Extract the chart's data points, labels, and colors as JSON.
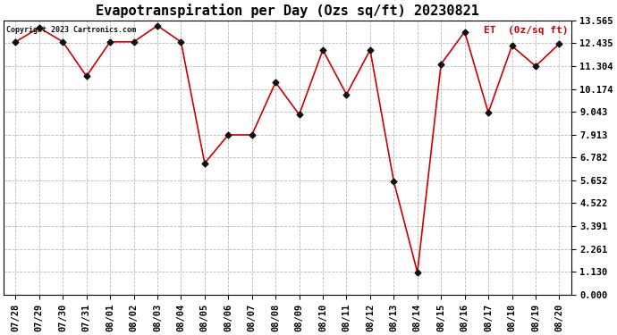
{
  "title": "Evapotranspiration per Day (Ozs sq/ft) 20230821",
  "legend_label": "ET  (0z/sq ft)",
  "copyright_text": "Copyright 2023 Cartronics.com",
  "x_labels": [
    "07/28",
    "07/29",
    "07/30",
    "07/31",
    "08/01",
    "08/02",
    "08/03",
    "08/04",
    "08/05",
    "08/06",
    "08/07",
    "08/08",
    "08/09",
    "08/10",
    "08/11",
    "08/12",
    "08/13",
    "08/14",
    "08/15",
    "08/16",
    "08/17",
    "08/18",
    "08/19",
    "08/20"
  ],
  "y_values": [
    12.5,
    13.2,
    12.5,
    10.8,
    12.5,
    12.5,
    13.3,
    12.5,
    6.5,
    7.9,
    7.9,
    10.5,
    8.9,
    12.1,
    9.9,
    12.1,
    5.6,
    1.1,
    11.4,
    13.0,
    9.0,
    12.3,
    11.3,
    12.4
  ],
  "line_color": "#cc0000",
  "marker_color": "#111111",
  "bg_color": "#ffffff",
  "grid_color": "#999999",
  "title_fontsize": 11,
  "label_fontsize": 7.5,
  "yticks": [
    0.0,
    1.13,
    2.261,
    3.391,
    4.522,
    5.652,
    6.782,
    7.913,
    9.043,
    10.174,
    11.304,
    12.435,
    13.565
  ],
  "ylim": [
    0.0,
    13.565
  ],
  "legend_color": "#cc0000",
  "copyright_fontsize": 6,
  "legend_fontsize": 8
}
